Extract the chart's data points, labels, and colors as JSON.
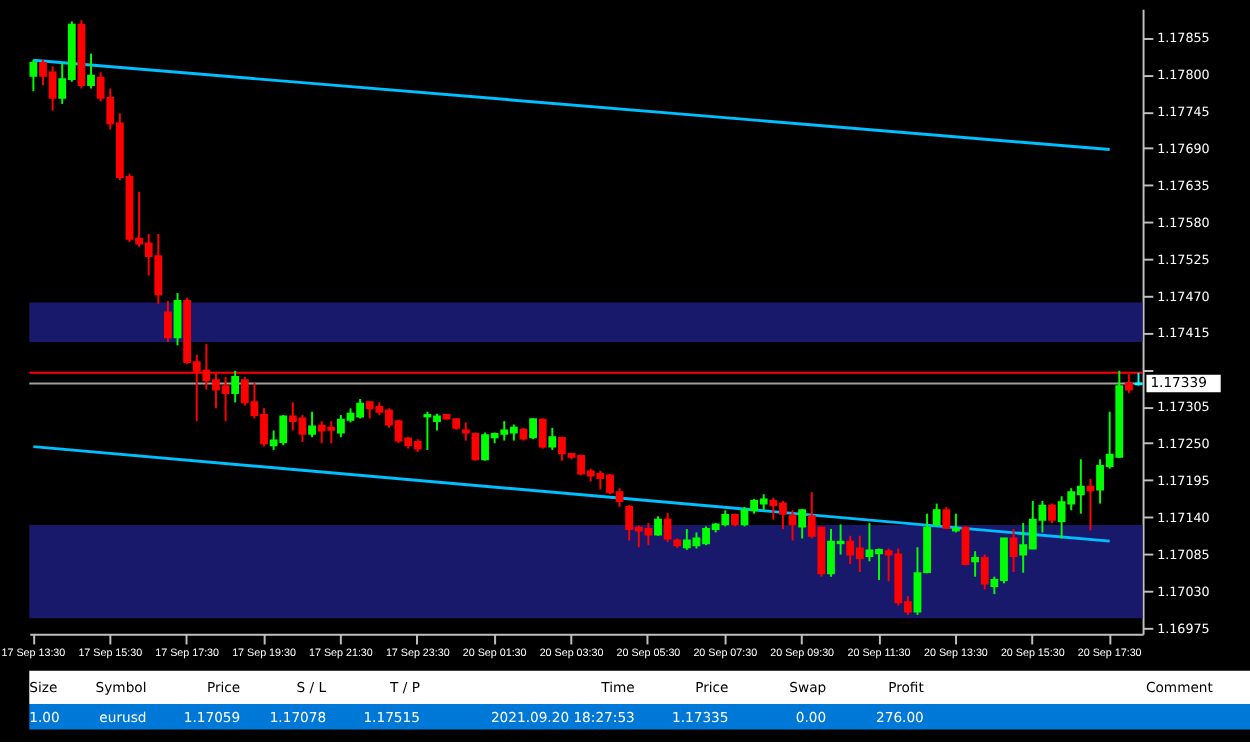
{
  "chart_data": {
    "type": "candlestick",
    "categories": [
      "17 Sep 13:30",
      null,
      null,
      null,
      null,
      null,
      null,
      null,
      "17 Sep 15:30",
      null,
      null,
      null,
      null,
      null,
      null,
      null,
      "17 Sep 17:30",
      null,
      null,
      null,
      null,
      null,
      null,
      null,
      "17 Sep 19:30",
      null,
      null,
      null,
      null,
      null,
      null,
      null,
      "17 Sep 21:30",
      null,
      null,
      null,
      null,
      null,
      null,
      null,
      "17 Sep 23:30",
      null,
      null,
      null,
      null,
      null,
      null,
      null,
      "20 Sep 01:30",
      null,
      null,
      null,
      null,
      null,
      null,
      null,
      "20 Sep 03:30",
      null,
      null,
      null,
      null,
      null,
      null,
      null,
      "20 Sep 05:30",
      null,
      null,
      null,
      null,
      null,
      null,
      null,
      "20 Sep 07:30",
      null,
      null,
      null,
      null,
      null,
      null,
      null,
      "20 Sep 09:30",
      null,
      null,
      null,
      null,
      null,
      null,
      null,
      "20 Sep 11:30",
      null,
      null,
      null,
      null,
      null,
      null,
      null,
      "20 Sep 13:30",
      null,
      null,
      null,
      null,
      null,
      null,
      null,
      "20 Sep 15:30",
      null,
      null,
      null,
      null,
      null,
      null,
      null,
      "20 Sep 17:30",
      null,
      null,
      null
    ],
    "ohlc": [
      [
        1.17798,
        1.17822,
        1.17775,
        1.17817
      ],
      [
        1.17817,
        1.17822,
        1.17784,
        1.17798
      ],
      [
        1.17803,
        1.17812,
        1.17746,
        1.17765
      ],
      [
        1.17765,
        1.17817,
        1.17756,
        1.17793
      ],
      [
        1.17793,
        1.17879,
        1.17789,
        1.17874
      ],
      [
        1.17874,
        1.17881,
        1.17779,
        1.17784
      ],
      [
        1.17784,
        1.17831,
        1.17779,
        1.17798
      ],
      [
        1.17795,
        1.17803,
        1.1776,
        1.17765
      ],
      [
        1.17765,
        1.17779,
        1.17718,
        1.17727
      ],
      [
        1.17727,
        1.17742,
        1.17642,
        1.17647
      ],
      [
        1.17647,
        1.17652,
        1.1755,
        1.17555
      ],
      [
        1.17555,
        1.17625,
        1.17543,
        1.17548
      ],
      [
        1.17548,
        1.17562,
        1.175,
        1.17529
      ],
      [
        1.17529,
        1.17562,
        1.17458,
        1.17472
      ],
      [
        1.17445,
        1.17462,
        1.17401,
        1.17408
      ],
      [
        1.17408,
        1.17474,
        1.17396,
        1.17462
      ],
      [
        1.17462,
        1.17467,
        1.17368,
        1.17371
      ],
      [
        1.17371,
        1.17382,
        1.17283,
        1.17358
      ],
      [
        1.17358,
        1.17398,
        1.1733,
        1.17344
      ],
      [
        1.17344,
        1.17354,
        1.17302,
        1.1733
      ],
      [
        1.17335,
        1.17349,
        1.17283,
        1.17325
      ],
      [
        1.17325,
        1.17358,
        1.17311,
        1.17349
      ],
      [
        1.17344,
        1.17349,
        1.17306,
        1.17311
      ],
      [
        1.17311,
        1.1734,
        1.17287,
        1.17292
      ],
      [
        1.17292,
        1.17302,
        1.17245,
        1.1725
      ],
      [
        1.17247,
        1.17269,
        1.1724,
        1.17254
      ],
      [
        1.17252,
        1.17292,
        1.17247,
        1.1729
      ],
      [
        1.1729,
        1.17311,
        1.17269,
        1.17283
      ],
      [
        1.17287,
        1.17292,
        1.17252,
        1.17264
      ],
      [
        1.17264,
        1.17297,
        1.17259,
        1.17275
      ],
      [
        1.17276,
        1.17283,
        1.1725,
        1.17269
      ],
      [
        1.17273,
        1.17283,
        1.1725,
        1.1727
      ],
      [
        1.17266,
        1.17292,
        1.17259,
        1.17285
      ],
      [
        1.17285,
        1.17302,
        1.17281,
        1.17294
      ],
      [
        1.1729,
        1.17316,
        1.17287,
        1.17309
      ],
      [
        1.17311,
        1.17313,
        1.17287,
        1.17302
      ],
      [
        1.17304,
        1.17311,
        1.17292,
        1.17297
      ],
      [
        1.17299,
        1.17302,
        1.17273,
        1.17278
      ],
      [
        1.17283,
        1.17285,
        1.1725,
        1.17254
      ],
      [
        1.17257,
        1.17259,
        1.17242,
        1.17247
      ],
      [
        1.17252,
        1.17256,
        1.17237,
        1.17242
      ],
      [
        1.1729,
        1.17297,
        1.1724,
        1.17292
      ],
      [
        1.17283,
        1.17294,
        1.17269,
        1.1729
      ],
      [
        1.17292,
        1.17294,
        1.17285,
        1.17287
      ],
      [
        1.17286,
        1.17287,
        1.1727,
        1.17273
      ],
      [
        1.17269,
        1.17281,
        1.17254,
        1.17266
      ],
      [
        1.17264,
        1.17266,
        1.17224,
        1.17226
      ],
      [
        1.17226,
        1.17266,
        1.17224,
        1.17262
      ],
      [
        1.17259,
        1.17266,
        1.1725,
        1.17264
      ],
      [
        1.17264,
        1.17283,
        1.17254,
        1.17269
      ],
      [
        1.17266,
        1.17278,
        1.17254,
        1.17273
      ],
      [
        1.1727,
        1.17273,
        1.17254,
        1.17257
      ],
      [
        1.17259,
        1.17287,
        1.17256,
        1.17286
      ],
      [
        1.17285,
        1.17287,
        1.17242,
        1.17245
      ],
      [
        1.17245,
        1.17273,
        1.1724,
        1.17259
      ],
      [
        1.17258,
        1.1726,
        1.17224,
        1.17235
      ],
      [
        1.17234,
        1.17235,
        1.17226,
        1.1723
      ],
      [
        1.17231,
        1.17233,
        1.17202,
        1.17205
      ],
      [
        1.17208,
        1.17212,
        1.17193,
        1.17202
      ],
      [
        1.17204,
        1.17209,
        1.17181,
        1.17198
      ],
      [
        1.17202,
        1.17204,
        1.17174,
        1.17177
      ],
      [
        1.17177,
        1.17183,
        1.17155,
        1.17164
      ],
      [
        1.17155,
        1.17158,
        1.17105,
        1.17122
      ],
      [
        1.17124,
        1.17127,
        1.17095,
        1.1712
      ],
      [
        1.17122,
        1.17131,
        1.17098,
        1.17114
      ],
      [
        1.17114,
        1.17141,
        1.17112,
        1.17136
      ],
      [
        1.17136,
        1.17146,
        1.17103,
        1.17108
      ],
      [
        1.17105,
        1.17108,
        1.17094,
        1.17098
      ],
      [
        1.17095,
        1.17122,
        1.17091,
        1.17105
      ],
      [
        1.17098,
        1.17117,
        1.17093,
        1.17108
      ],
      [
        1.17101,
        1.17126,
        1.17098,
        1.17122
      ],
      [
        1.17122,
        1.17131,
        1.17117,
        1.17129
      ],
      [
        1.17129,
        1.1715,
        1.17126,
        1.17143
      ],
      [
        1.17143,
        1.17145,
        1.17126,
        1.17129
      ],
      [
        1.17129,
        1.17155,
        1.17126,
        1.1715
      ],
      [
        1.1715,
        1.17167,
        1.17145,
        1.17164
      ],
      [
        1.1716,
        1.17174,
        1.1715,
        1.17166
      ],
      [
        1.17164,
        1.17169,
        1.17136,
        1.17158
      ],
      [
        1.1716,
        1.17164,
        1.17122,
        1.17145
      ],
      [
        1.17142,
        1.1715,
        1.17105,
        1.17129
      ],
      [
        1.17126,
        1.17152,
        1.17108,
        1.1715
      ],
      [
        1.17141,
        1.17177,
        1.17108,
        1.17112
      ],
      [
        1.17124,
        1.17126,
        1.17051,
        1.17056
      ],
      [
        1.17056,
        1.17122,
        1.17051,
        1.17103
      ],
      [
        1.17101,
        1.17129,
        1.17084,
        1.17103
      ],
      [
        1.17103,
        1.17112,
        1.1707,
        1.17084
      ],
      [
        1.17093,
        1.17112,
        1.17058,
        1.17079
      ],
      [
        1.17082,
        1.17131,
        1.17074,
        1.1709
      ],
      [
        1.17086,
        1.17093,
        1.17046,
        1.17091
      ],
      [
        1.17089,
        1.17093,
        1.17044,
        1.17084
      ],
      [
        1.17084,
        1.17093,
        1.17008,
        1.17013
      ],
      [
        1.17013,
        1.17022,
        1.16994,
        1.16999
      ],
      [
        1.16999,
        1.17095,
        1.16994,
        1.17056
      ],
      [
        1.17058,
        1.17145,
        1.17056,
        1.17124
      ],
      [
        1.17129,
        1.1716,
        1.17126,
        1.1715
      ],
      [
        1.1715,
        1.17155,
        1.17122,
        1.17124
      ],
      [
        1.1712,
        1.17145,
        1.17117,
        1.17122
      ],
      [
        1.17124,
        1.17126,
        1.17068,
        1.1707
      ],
      [
        1.17074,
        1.17089,
        1.17051,
        1.17079
      ],
      [
        1.17079,
        1.17084,
        1.17032,
        1.17041
      ],
      [
        1.17037,
        1.17051,
        1.17025,
        1.17046
      ],
      [
        1.17046,
        1.17109,
        1.17041,
        1.17108
      ],
      [
        1.17108,
        1.17122,
        1.17058,
        1.17082
      ],
      [
        1.17084,
        1.17131,
        1.17057,
        1.17098
      ],
      [
        1.17093,
        1.17164,
        1.17093,
        1.17136
      ],
      [
        1.17136,
        1.17164,
        1.17117,
        1.17157
      ],
      [
        1.17157,
        1.1716,
        1.17131,
        1.17136
      ],
      [
        1.17134,
        1.17171,
        1.17108,
        1.17162
      ],
      [
        1.1716,
        1.17183,
        1.1715,
        1.17177
      ],
      [
        1.17174,
        1.17226,
        1.17145,
        1.17185
      ],
      [
        1.17185,
        1.17197,
        1.1712,
        1.1718
      ],
      [
        1.17181,
        1.17226,
        1.1716,
        1.17216
      ],
      [
        1.17216,
        1.17297,
        1.17212,
        1.17233
      ],
      [
        1.1723,
        1.17358,
        1.17228,
        1.17335
      ],
      [
        1.17339,
        1.17353,
        1.17325,
        1.1733
      ],
      [
        1.17338,
        1.17355,
        1.17336,
        1.17339
      ]
    ],
    "colors": [
      "#00ff00",
      "#ff0000",
      "#ff0000",
      "#00ff00",
      "#00ff00",
      "#ff0000",
      "#00ff00",
      "#ff0000",
      "#ff0000",
      "#ff0000",
      "#ff0000",
      "#ff0000",
      "#ff0000",
      "#ff0000",
      "#ff0000",
      "#00ff00",
      "#ff0000",
      "#ff0000",
      "#ff0000",
      "#ff0000",
      "#ff0000",
      "#00ff00",
      "#ff0000",
      "#ff0000",
      "#ff0000",
      "#00ff00",
      "#00ff00",
      "#ff0000",
      "#ff0000",
      "#00ff00",
      "#ff0000",
      "#ff0000",
      "#00ff00",
      "#00ff00",
      "#00ff00",
      "#ff0000",
      "#ff0000",
      "#ff0000",
      "#ff0000",
      "#ff0000",
      "#ff0000",
      "#00ff00",
      "#00ff00",
      "#ff0000",
      "#ff0000",
      "#ff0000",
      "#ff0000",
      "#00ff00",
      "#00ff00",
      "#00ff00",
      "#00ff00",
      "#ff0000",
      "#00ff00",
      "#ff0000",
      "#00ff00",
      "#ff0000",
      "#ff0000",
      "#ff0000",
      "#ff0000",
      "#ff0000",
      "#ff0000",
      "#ff0000",
      "#ff0000",
      "#ff0000",
      "#ff0000",
      "#00ff00",
      "#ff0000",
      "#ff0000",
      "#00ff00",
      "#00ff00",
      "#00ff00",
      "#00ff00",
      "#00ff00",
      "#ff0000",
      "#00ff00",
      "#00ff00",
      "#00ff00",
      "#ff0000",
      "#ff0000",
      "#ff0000",
      "#00ff00",
      "#ff0000",
      "#ff0000",
      "#00ff00",
      "#00ff00",
      "#ff0000",
      "#ff0000",
      "#00ff00",
      "#00ff00",
      "#ff0000",
      "#ff0000",
      "#ff0000",
      "#00ff00",
      "#00ff00",
      "#00ff00",
      "#ff0000",
      "#00ff00",
      "#ff0000",
      "#00ff00",
      "#ff0000",
      "#00ff00",
      "#00ff00",
      "#ff0000",
      "#00ff00",
      "#00ff00",
      "#00ff00",
      "#ff0000",
      "#00ff00",
      "#00ff00",
      "#00ff00",
      "#ff0000",
      "#00ff00",
      "#00ff00",
      "#00ff00",
      "#ff0000",
      "#00ffff"
    ],
    "series": [
      {
        "type": "line",
        "color": "#00bfff",
        "x": [
          "17 Sep 13:30",
          "20 Sep 17:30"
        ],
        "values": [
          1.17821,
          1.17688
        ]
      },
      {
        "type": "line",
        "color": "#00bfff",
        "x": [
          "17 Sep 13:30",
          "20 Sep 17:30"
        ],
        "values": [
          1.17245,
          1.17104
        ]
      }
    ],
    "ylim": [
      1.16966,
      1.17898
    ],
    "yticks": [
      1.16975,
      {
        "value": 1.1703,
        "label": "1.17030"
      },
      1.17085,
      {
        "value": 1.1714,
        "label": "1.17140"
      },
      1.17195,
      {
        "value": 1.1725,
        "label": "1.17250"
      },
      1.17305,
      {
        "value": 1.1736,
        "label": null
      },
      1.17415,
      {
        "value": 1.1747,
        "label": "1.17470"
      },
      1.17525,
      {
        "value": 1.1758,
        "label": "1.17580"
      },
      1.17635,
      {
        "value": 1.1769,
        "label": "1.17690"
      },
      1.17745,
      {
        "value": 1.178,
        "label": "1.17800"
      },
      1.17855
    ],
    "bands": [
      {
        "axis": "y",
        "from": 1.17401,
        "to": 1.1746,
        "color": "#1c1c78"
      },
      {
        "axis": "y",
        "from": 1.16989,
        "to": 1.17128,
        "color": "#1c1c78"
      }
    ],
    "ref_lines": [
      {
        "axis": "y",
        "value": 1.17355,
        "color": "#ff0000"
      },
      {
        "axis": "y",
        "value": 1.17339,
        "label": "1.17339",
        "color": "#a0a0a0"
      }
    ],
    "annotations": [
      "Size",
      "Symbol",
      "Price",
      "S / L",
      "T / P",
      "Time",
      "Price",
      "Swap",
      "Profit",
      "Comment",
      "1.00",
      "eurusd",
      "1.17059",
      "1.17078",
      "1.17515",
      "2021.09.20 18:27:53",
      "1.17335",
      "0.00",
      "276.00"
    ],
    "grid": false
  }
}
